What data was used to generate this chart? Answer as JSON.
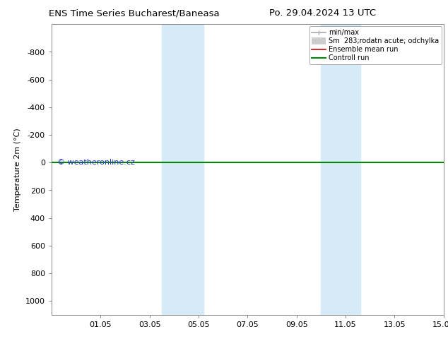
{
  "title_left": "ENS Time Series Bucharest/Baneasa",
  "title_right": "Po. 29.04.2024 13 UTC",
  "ylabel": "Temperature 2m (°C)",
  "watermark": "© weatheronline.cz",
  "xtick_labels": [
    "01.05",
    "03.05",
    "05.05",
    "07.05",
    "09.05",
    "11.05",
    "13.05",
    "15.05"
  ],
  "xtick_positions": [
    2,
    4,
    6,
    8,
    10,
    12,
    14,
    16
  ],
  "xlim": [
    0,
    16
  ],
  "ylim": [
    -1000,
    1100
  ],
  "yticks": [
    -800,
    -600,
    -400,
    -200,
    0,
    200,
    400,
    600,
    800,
    1000
  ],
  "bg_color": "#ffffff",
  "plot_bg_color": "#ffffff",
  "shaded_regions": [
    {
      "xstart": 4.5,
      "xend": 6.2,
      "color": "#d6eaf8"
    },
    {
      "xstart": 11.0,
      "xend": 12.6,
      "color": "#d6eaf8"
    }
  ],
  "green_line_y": 0,
  "red_line_y": 0,
  "legend_entries": [
    {
      "label": "min/max",
      "color": "#aaaaaa",
      "lw": 1.2
    },
    {
      "label": "Sm  283;rodatn acute; odchylka",
      "color": "#cccccc",
      "lw": 7
    },
    {
      "label": "Ensemble mean run",
      "color": "#dd0000",
      "lw": 1.2
    },
    {
      "label": "Controll run",
      "color": "#008800",
      "lw": 1.5
    }
  ],
  "border_color": "#888888",
  "tick_color": "#888888",
  "watermark_color": "#3333cc",
  "title_fontsize": 9.5,
  "tick_fontsize": 8,
  "ylabel_fontsize": 8,
  "legend_fontsize": 7
}
